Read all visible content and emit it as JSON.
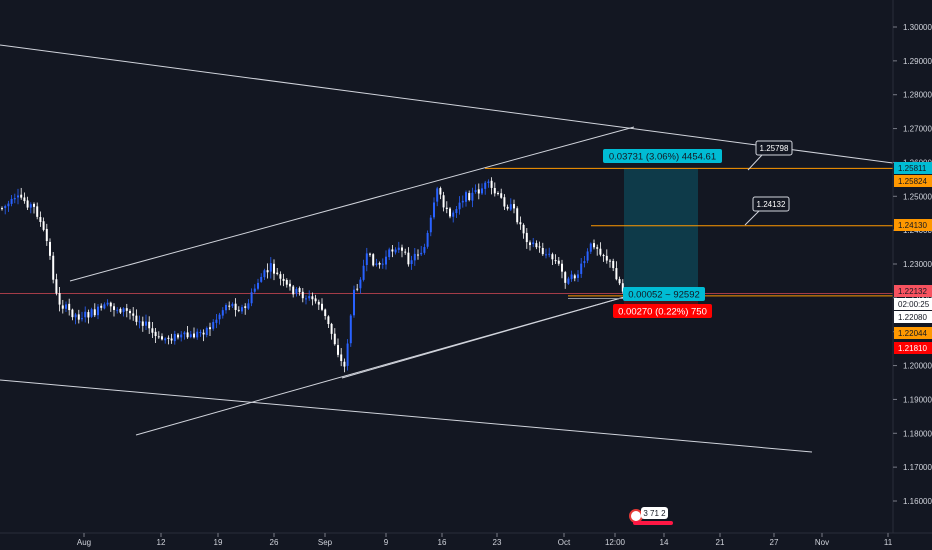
{
  "chart_data": {
    "type": "candlestick",
    "title": "",
    "ylim": [
      1.15,
      1.309
    ],
    "x_labels": [
      {
        "key": "aug",
        "label": "Aug"
      },
      {
        "key": "aug12",
        "label": "12"
      },
      {
        "key": "aug19",
        "label": "19"
      },
      {
        "key": "aug26",
        "label": "26"
      },
      {
        "key": "sep",
        "label": "Sep"
      },
      {
        "key": "sep9",
        "label": "9"
      },
      {
        "key": "sep16",
        "label": "16"
      },
      {
        "key": "sep23",
        "label": "23"
      },
      {
        "key": "oct",
        "label": "Oct"
      },
      {
        "key": "t1200",
        "label": "12:00"
      },
      {
        "key": "oct14",
        "label": "14"
      },
      {
        "key": "oct21",
        "label": "21"
      },
      {
        "key": "oct27",
        "label": "27"
      },
      {
        "key": "nov",
        "label": "Nov"
      },
      {
        "key": "nov11",
        "label": "11"
      }
    ],
    "y_ticks": [
      "1.30000",
      "1.29000",
      "1.28000",
      "1.27000",
      "1.26000",
      "1.25000",
      "1.24000",
      "1.23000",
      "1.22000",
      "1.21000",
      "1.20000",
      "1.19000",
      "1.18000",
      "1.17000",
      "1.16000"
    ],
    "price_tags": [
      {
        "label": "1.25811",
        "value": 1.25811,
        "bg": "#00bcd4",
        "fg": "#131722"
      },
      {
        "label": "1.25824",
        "value": 1.25824,
        "bg": "#ff9800",
        "fg": "#131722"
      },
      {
        "label": "1.24130",
        "value": 1.2413,
        "bg": "#ff9800",
        "fg": "#131722"
      },
      {
        "label": "1.22132",
        "value": 1.22132,
        "bg": "#f7525f",
        "fg": "#131722"
      },
      {
        "label": "1.22080",
        "value": 1.2208,
        "bg": "#ffffff",
        "fg": "#131722"
      },
      {
        "label": "02:00:25",
        "value": 1.2199,
        "bg": "#ffffff",
        "fg": "#131722"
      },
      {
        "label": "1.22044",
        "value": 1.22044,
        "bg": "#ff9800",
        "fg": "#131722"
      },
      {
        "label": "1.21810",
        "value": 1.2181,
        "bg": "#ff0000",
        "fg": "#ffffff"
      }
    ],
    "callouts": [
      {
        "label": "1.25798",
        "value": 1.25798
      },
      {
        "label": "1.24132",
        "value": 1.24132
      }
    ],
    "position_labels": {
      "profit": "0.03731 (3.06%) 4454.61",
      "entry": "0.00052 ~ 92592",
      "stop": "0.00270 (0.22%) 750"
    },
    "levels": {
      "entry": 1.22132,
      "target": 1.25811,
      "stop": 1.2181,
      "horizontal_1": 1.25824,
      "horizontal_2": 1.2413
    },
    "colors": {
      "background": "#131722",
      "up_candle": "#2962ff",
      "down_candle": "#ffffff",
      "trend_lines": "#d1d4dc",
      "horizontal_levels": "#ff9800",
      "profit_zone": "#00bcd4",
      "stop_zone": "#ff0000",
      "entry_line": "#f7525f"
    },
    "badge": {
      "label": "3 71 2"
    }
  }
}
